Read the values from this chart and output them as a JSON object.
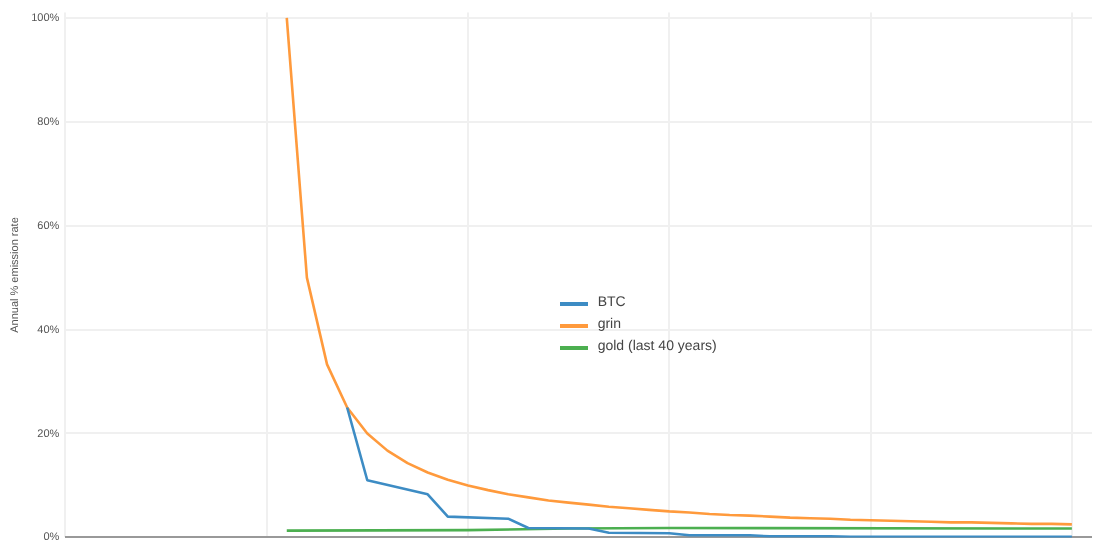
{
  "chart_data": {
    "type": "line",
    "ylabel": "Annual % emission rate",
    "categories": [
      null,
      null,
      null,
      null,
      null,
      null,
      null,
      null,
      null,
      null,
      null,
      null,
      null,
      null,
      null,
      null,
      null,
      null,
      null,
      null,
      null,
      null,
      null,
      null,
      null,
      null,
      null,
      null,
      null,
      null,
      null,
      null,
      null,
      null,
      null,
      null,
      null,
      null,
      null,
      null,
      null,
      null,
      null,
      null,
      null,
      null,
      null,
      null,
      null,
      null,
      null,
      null
    ],
    "ylim": [
      0,
      101
    ],
    "yticks": [
      {
        "value": 0,
        "label": "0%"
      },
      {
        "value": 20,
        "label": "20%"
      },
      {
        "value": 40,
        "label": "40%"
      },
      {
        "value": 60,
        "label": "60%"
      },
      {
        "value": 80,
        "label": "80%"
      },
      {
        "value": 100,
        "label": "100%"
      }
    ],
    "tick_labels": "y",
    "grid": true,
    "legend": "center",
    "marker": "none",
    "series": [
      {
        "name": "BTC",
        "color": "#3d8cc4",
        "values": [
          null,
          null,
          null,
          null,
          null,
          null,
          null,
          null,
          null,
          null,
          null,
          null,
          null,
          null,
          25,
          11,
          null,
          null,
          8.3,
          4,
          null,
          null,
          3.6,
          1.8,
          null,
          null,
          1.7,
          0.9,
          null,
          null,
          0.8,
          0.4,
          null,
          null,
          0.4,
          0.2,
          null,
          null,
          0.2,
          0.1,
          null,
          null,
          null,
          null,
          null,
          null,
          null,
          null,
          null,
          null,
          0.1,
          null
        ]
      },
      {
        "name": "grin",
        "color": "#ff9a3c",
        "values": [
          null,
          null,
          null,
          null,
          null,
          null,
          null,
          null,
          null,
          null,
          null,
          100,
          50,
          33.3,
          25,
          20,
          16.7,
          14.3,
          12.5,
          11.1,
          10,
          9.1,
          8.3,
          7.7,
          7.1,
          6.7,
          6.3,
          5.9,
          5.6,
          5.3,
          5,
          4.8,
          4.5,
          4.3,
          4.2,
          4,
          3.8,
          3.7,
          3.6,
          3.4,
          3.3,
          3.2,
          3.1,
          3,
          2.9,
          2.9,
          2.8,
          2.7,
          2.6,
          2.6,
          2.5,
          null
        ]
      },
      {
        "name": "gold (last 40 years)",
        "color": "#4caf50",
        "values": [
          null,
          null,
          null,
          null,
          null,
          null,
          null,
          null,
          null,
          null,
          null,
          1.3,
          null,
          null,
          null,
          null,
          null,
          null,
          null,
          null,
          1.4,
          null,
          null,
          null,
          null,
          1.7,
          null,
          null,
          null,
          null,
          1.8,
          null,
          null,
          null,
          null,
          null,
          null,
          null,
          null,
          null,
          null,
          null,
          null,
          null,
          null,
          null,
          null,
          null,
          null,
          null,
          1.7,
          null
        ]
      }
    ]
  }
}
